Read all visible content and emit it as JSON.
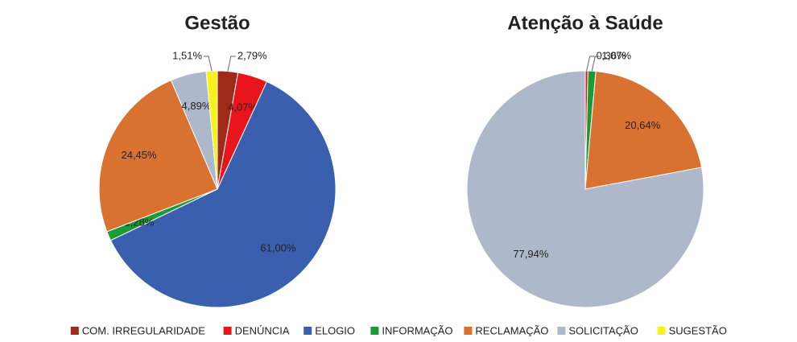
{
  "chart_data": [
    {
      "type": "pie",
      "title": "Gestão",
      "categories": [
        "COM. IRREGULARIDADE",
        "DENÚNCIA",
        "ELOGIO",
        "INFORMAÇÃO",
        "RECLAMAÇÃO",
        "SOLICITAÇÃO",
        "SUGESTÃO"
      ],
      "values": [
        2.79,
        4.07,
        61.0,
        1.28,
        24.45,
        4.89,
        1.51
      ],
      "value_labels": [
        "2,79%",
        "4,07%",
        "61,00%",
        "1,28%",
        "24,45%",
        "4,89%",
        "1,51%"
      ],
      "colors": [
        "#9e2a1a",
        "#e8161b",
        "#3a5fae",
        "#1c9a37",
        "#d97230",
        "#adb8ca",
        "#f7f21a"
      ]
    },
    {
      "type": "pie",
      "title": "Atenção à Saúde",
      "categories": [
        "DENÚNCIA",
        "INFORMAÇÃO",
        "RECLAMAÇÃO",
        "SOLICITAÇÃO"
      ],
      "values": [
        0.36,
        1.07,
        20.64,
        77.94
      ],
      "value_labels": [
        "0,36%",
        "1,07%",
        "20,64%",
        "77,94%"
      ],
      "colors": [
        "#e8161b",
        "#1c9a37",
        "#d97230",
        "#adb8ca"
      ]
    }
  ],
  "legend": {
    "names": [
      "COM. IRREGULARIDADE",
      "DENÚNCIA",
      "ELOGIO",
      "INFORMAÇÃO",
      "RECLAMAÇÃO",
      "SOLICITAÇÃO",
      "SUGESTÃO"
    ],
    "colors": [
      "#9e2a1a",
      "#e8161b",
      "#3a5fae",
      "#1c9a37",
      "#d97230",
      "#adb8ca",
      "#f7f21a"
    ]
  }
}
